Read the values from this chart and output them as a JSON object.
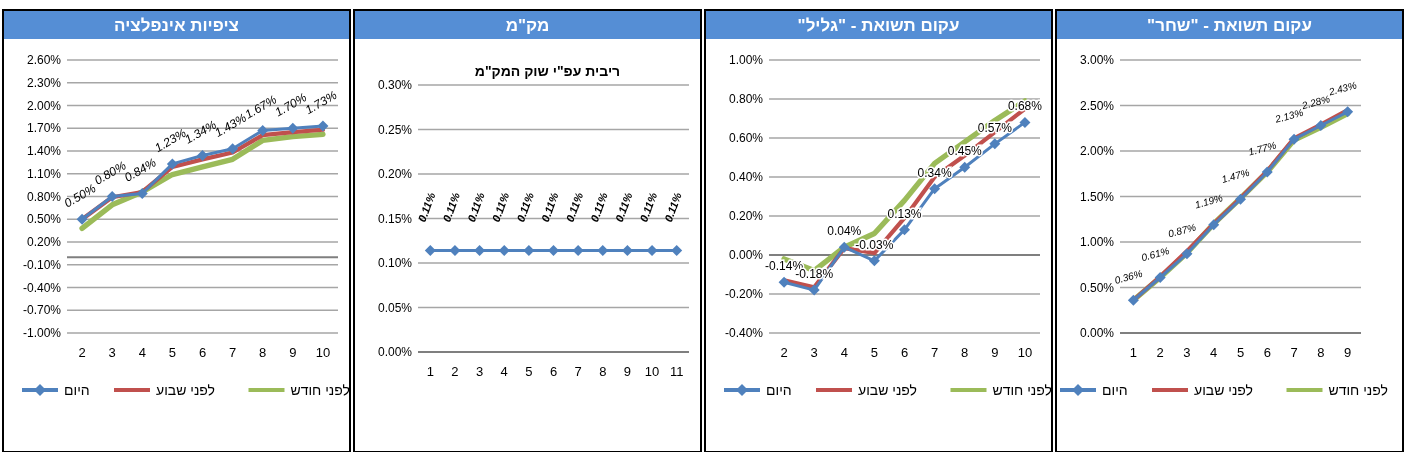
{
  "chart_data": [
    {
      "type": "line",
      "title": "ציפיות אינפלציה",
      "categories": [
        "2",
        "3",
        "4",
        "5",
        "6",
        "7",
        "8",
        "9",
        "10"
      ],
      "ylim": [
        -1.0,
        2.6
      ],
      "yticks": [
        {
          "value": -1.0,
          "label": "-1.00%"
        },
        {
          "value": -0.7,
          "label": "-0.70%"
        },
        {
          "value": -0.4,
          "label": "-0.40%"
        },
        {
          "value": -0.1,
          "label": "-0.10%"
        },
        {
          "value": 0.2,
          "label": "0.20%"
        },
        {
          "value": 0.5,
          "label": "0.50%"
        },
        {
          "value": 0.8,
          "label": "0.80%"
        },
        {
          "value": 1.1,
          "label": "1.10%"
        },
        {
          "value": 1.4,
          "label": "1.40%"
        },
        {
          "value": 1.7,
          "label": "1.70%"
        },
        {
          "value": 2.0,
          "label": "2.00%"
        },
        {
          "value": 2.3,
          "label": "2.30%"
        },
        {
          "value": 2.6,
          "label": "2.60%"
        }
      ],
      "grid": "y",
      "legend": "bottom",
      "series": [
        {
          "name": "היום",
          "color": "#4f81bd",
          "marker": "diamond",
          "values": [
            0.5,
            0.8,
            0.84,
            1.23,
            1.34,
            1.43,
            1.67,
            1.7,
            1.73
          ],
          "value_labels": [
            "0.50%",
            "0.80%",
            "0.84%",
            "1.23%",
            "1.34%",
            "1.43%",
            "1.67%",
            "1.70%",
            "1.73%"
          ]
        },
        {
          "name": "לפני שבוע",
          "color": "#c0504d",
          "marker": "none",
          "values": [
            0.5,
            0.79,
            0.86,
            1.19,
            1.29,
            1.38,
            1.61,
            1.65,
            1.68
          ]
        },
        {
          "name": "לפני חודש",
          "color": "#9bbb59",
          "marker": "none",
          "values": [
            0.38,
            0.69,
            0.86,
            1.09,
            1.19,
            1.29,
            1.54,
            1.59,
            1.62
          ]
        }
      ]
    },
    {
      "type": "line",
      "title": "מק\"מ",
      "subtitle": "ריבית עפ\"י שוק המק\"מ",
      "categories": [
        "1",
        "2",
        "3",
        "4",
        "5",
        "6",
        "7",
        "8",
        "9",
        "10",
        "11"
      ],
      "ylim": [
        0,
        0.3
      ],
      "yticks": [
        {
          "value": 0,
          "label": "0.00%"
        },
        {
          "value": 0.05,
          "label": "0.05%"
        },
        {
          "value": 0.1,
          "label": "0.10%"
        },
        {
          "value": 0.15,
          "label": "0.15%"
        },
        {
          "value": 0.2,
          "label": "0.20%"
        },
        {
          "value": 0.25,
          "label": "0.25%"
        },
        {
          "value": 0.3,
          "label": "0.30%"
        }
      ],
      "grid": "y",
      "series": [
        {
          "color": "#4f81bd",
          "marker": "diamond",
          "values": [
            0.114,
            0.114,
            0.114,
            0.114,
            0.114,
            0.114,
            0.114,
            0.114,
            0.114,
            0.114,
            0.114
          ],
          "value_labels": [
            "0.11%",
            "0.11%",
            "0.11%",
            "0.11%",
            "0.11%",
            "0.11%",
            "0.11%",
            "0.11%",
            "0.11%",
            "0.11%",
            "0.11%"
          ]
        }
      ]
    },
    {
      "type": "line",
      "title": "עקום תשואת - \"גליל\"",
      "categories": [
        "2",
        "3",
        "4",
        "5",
        "6",
        "7",
        "8",
        "9",
        "10"
      ],
      "ylim": [
        -0.4,
        1.0
      ],
      "yticks": [
        {
          "value": -0.4,
          "label": "-0.40%"
        },
        {
          "value": -0.2,
          "label": "-0.20%"
        },
        {
          "value": 0,
          "label": "0.00%"
        },
        {
          "value": 0.2,
          "label": "0.20%"
        },
        {
          "value": 0.4,
          "label": "0.40%"
        },
        {
          "value": 0.6,
          "label": "0.60%"
        },
        {
          "value": 0.8,
          "label": "0.80%"
        },
        {
          "value": 1.0,
          "label": "1.00%"
        }
      ],
      "grid": "y",
      "legend": "bottom",
      "series": [
        {
          "name": "היום",
          "color": "#4f81bd",
          "marker": "diamond",
          "values": [
            -0.14,
            -0.18,
            0.04,
            -0.03,
            0.13,
            0.34,
            0.45,
            0.57,
            0.68
          ],
          "value_labels": [
            "-0.14%",
            "-0.18%",
            "0.04%",
            "-0.03%",
            "0.13%",
            "0.34%",
            "0.45%",
            "0.57%",
            "0.68%"
          ]
        },
        {
          "name": "לפני שבוע",
          "color": "#c0504d",
          "marker": "none",
          "values": [
            -0.13,
            -0.165,
            0.035,
            0.01,
            0.19,
            0.4,
            0.51,
            0.63,
            0.75
          ]
        },
        {
          "name": "לפני חודש",
          "color": "#9bbb59",
          "marker": "none",
          "values": [
            -0.02,
            -0.08,
            0.04,
            0.11,
            0.28,
            0.47,
            0.58,
            0.69,
            0.79
          ]
        }
      ]
    },
    {
      "type": "line",
      "title": "עקום תשואת - \"שחר\"",
      "categories": [
        "1",
        "2",
        "3",
        "4",
        "5",
        "6",
        "7",
        "8",
        "9"
      ],
      "ylim": [
        0,
        3.0
      ],
      "yticks": [
        {
          "value": 0,
          "label": "0.00%"
        },
        {
          "value": 0.5,
          "label": "0.50%"
        },
        {
          "value": 1.0,
          "label": "1.00%"
        },
        {
          "value": 1.5,
          "label": "1.50%"
        },
        {
          "value": 2.0,
          "label": "2.00%"
        },
        {
          "value": 2.5,
          "label": "2.50%"
        },
        {
          "value": 3.0,
          "label": "3.00%"
        }
      ],
      "grid": "y",
      "legend": "bottom",
      "series": [
        {
          "name": "היום",
          "color": "#4f81bd",
          "marker": "diamond",
          "values": [
            0.36,
            0.61,
            0.87,
            1.19,
            1.47,
            1.77,
            2.13,
            2.28,
            2.43
          ],
          "value_labels": [
            "0.36%",
            "0.61%",
            "0.87%",
            "1.19%",
            "1.47%",
            "1.77%",
            "2.13%",
            "2.28%",
            "2.43%"
          ]
        },
        {
          "name": "לפני שבוע",
          "color": "#c0504d",
          "marker": "none",
          "values": [
            0.36,
            0.62,
            0.9,
            1.2,
            1.48,
            1.78,
            2.14,
            2.29,
            2.45
          ]
        },
        {
          "name": "לפני חודש",
          "color": "#9bbb59",
          "marker": "none",
          "values": [
            0.36,
            0.61,
            0.88,
            1.2,
            1.48,
            1.77,
            2.12,
            2.26,
            2.41
          ]
        }
      ]
    }
  ]
}
